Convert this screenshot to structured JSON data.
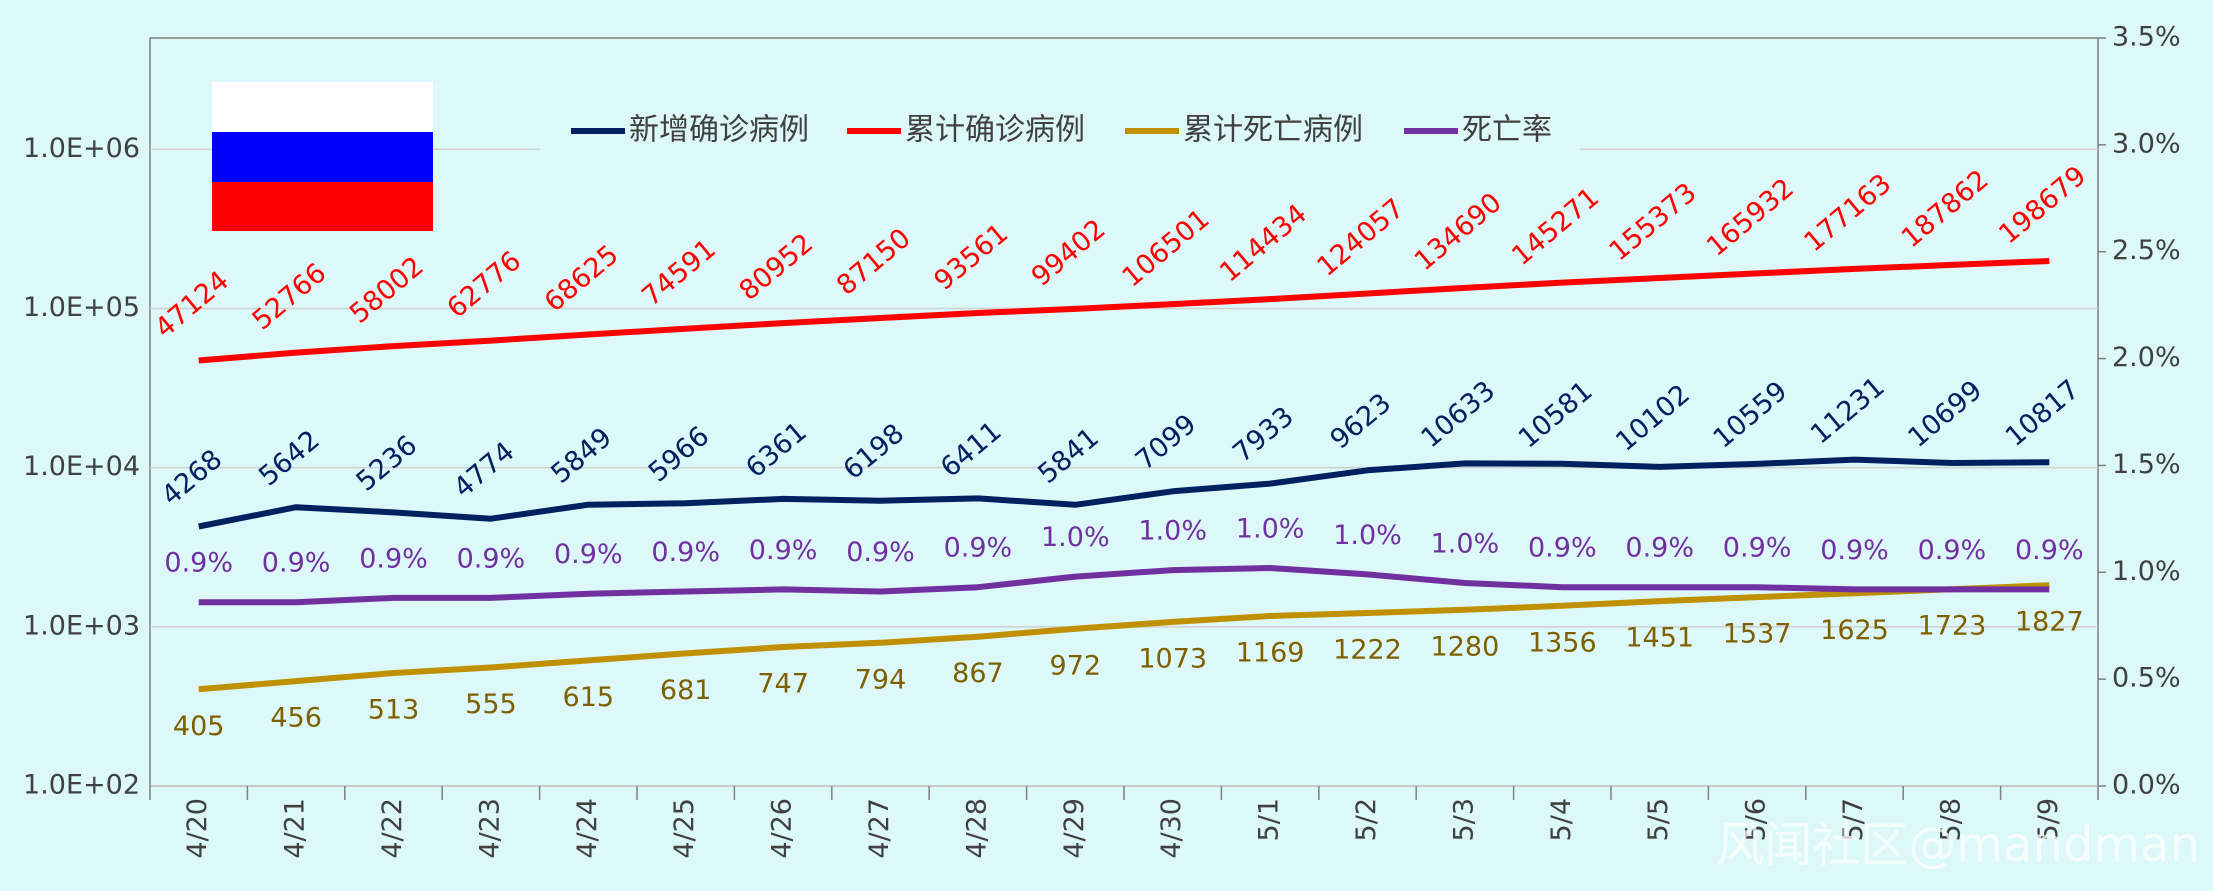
{
  "chart_data": {
    "type": "line",
    "categories": [
      "4/20",
      "4/21",
      "4/22",
      "4/23",
      "4/24",
      "4/25",
      "4/26",
      "4/27",
      "4/28",
      "4/29",
      "4/30",
      "5/1",
      "5/2",
      "5/3",
      "5/4",
      "5/5",
      "5/6",
      "5/7",
      "5/8",
      "5/9"
    ],
    "series": [
      {
        "name": "新增确诊病例",
        "color": "#002060",
        "values": [
          4268,
          5642,
          5236,
          4774,
          5849,
          5966,
          6361,
          6198,
          6411,
          5841,
          7099,
          7933,
          9623,
          10633,
          10581,
          10102,
          10559,
          11231,
          10699,
          10817
        ]
      },
      {
        "name": "累计确诊病例",
        "color": "#ff0000",
        "values": [
          47124,
          52766,
          58002,
          62776,
          68625,
          74591,
          80952,
          87150,
          93561,
          99402,
          106501,
          114434,
          124057,
          134690,
          145271,
          155373,
          165932,
          177163,
          187862,
          198679
        ]
      },
      {
        "name": "累计死亡病例",
        "color": "#bf9000",
        "label_color": "#7f6000",
        "values": [
          405,
          456,
          513,
          555,
          615,
          681,
          747,
          794,
          867,
          972,
          1073,
          1169,
          1222,
          1280,
          1356,
          1451,
          1537,
          1625,
          1723,
          1827
        ]
      },
      {
        "name": "死亡率",
        "color": "#7030a0",
        "axis": "y2",
        "values": [
          0.86,
          0.86,
          0.88,
          0.88,
          0.9,
          0.91,
          0.92,
          0.91,
          0.93,
          0.98,
          1.01,
          1.02,
          0.99,
          0.95,
          0.93,
          0.93,
          0.93,
          0.92,
          0.92,
          0.92
        ],
        "value_labels": [
          "0.9%",
          "0.9%",
          "0.9%",
          "0.9%",
          "0.9%",
          "0.9%",
          "0.9%",
          "0.9%",
          "0.9%",
          "1.0%",
          "1.0%",
          "1.0%",
          "1.0%",
          "1.0%",
          "0.9%",
          "0.9%",
          "0.9%",
          "0.9%",
          "0.9%",
          "0.9%"
        ]
      }
    ],
    "log_scale": true,
    "ylim": [
      100,
      5000000
    ],
    "yticks": [
      {
        "value": 100,
        "label": "1.0E+02"
      },
      {
        "value": 1000,
        "label": "1.0E+03"
      },
      {
        "value": 10000,
        "label": "1.0E+04"
      },
      {
        "value": 100000,
        "label": "1.0E+05"
      },
      {
        "value": 1000000,
        "label": "1.0E+06"
      }
    ],
    "y2lim": [
      0,
      3.5
    ],
    "y2ticks": [
      {
        "value": 0,
        "label": "0.0%"
      },
      {
        "value": 0.5,
        "label": "0.5%"
      },
      {
        "value": 1,
        "label": "1.0%"
      },
      {
        "value": 1.5,
        "label": "1.5%"
      },
      {
        "value": 2,
        "label": "2.0%"
      },
      {
        "value": 2.5,
        "label": "2.5%"
      },
      {
        "value": 3,
        "label": "3.0%"
      },
      {
        "value": 3.5,
        "label": "3.5%"
      }
    ],
    "grid": true,
    "legend": "top",
    "watermark": "风闻社区@mandman"
  }
}
